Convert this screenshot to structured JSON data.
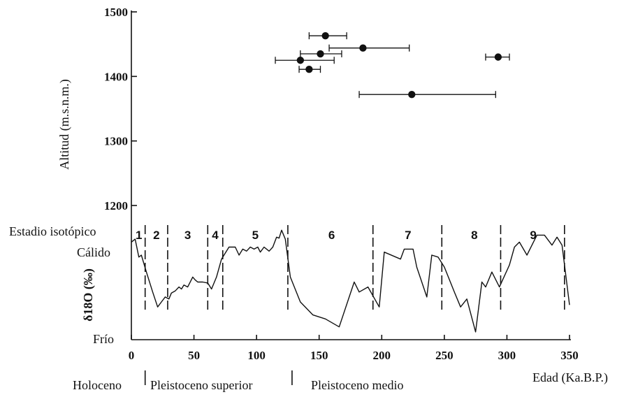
{
  "chart_data": {
    "type": "scatter",
    "ylabel": "Altitud (m.s.n.m.)",
    "xlabel": "Edad (Ka.B.P.)",
    "xlim": [
      0,
      350
    ],
    "ylim": [
      1200,
      1500
    ],
    "x_ticks": [
      0,
      50,
      100,
      150,
      200,
      250,
      300,
      350
    ],
    "y_ticks": [
      1200,
      1300,
      1400,
      1500
    ],
    "points": [
      {
        "x": 155,
        "y": 1463,
        "xmin": 142,
        "xmax": 172
      },
      {
        "x": 185,
        "y": 1444,
        "xmin": 158,
        "xmax": 222
      },
      {
        "x": 151,
        "y": 1435,
        "xmin": 135,
        "xmax": 168
      },
      {
        "x": 135,
        "y": 1425,
        "xmin": 115,
        "xmax": 162
      },
      {
        "x": 142,
        "y": 1411,
        "xmin": 134,
        "xmax": 151
      },
      {
        "x": 293,
        "y": 1430,
        "xmin": 283,
        "xmax": 302
      },
      {
        "x": 224,
        "y": 1372,
        "xmin": 182,
        "xmax": 291
      }
    ],
    "isotope": {
      "ylabel": "δ18O (‰)",
      "warm_label": "Cálido",
      "cold_label": "Frío",
      "stage_title": "Estadio isotópico",
      "stages": [
        {
          "label": "1",
          "center": 6
        },
        {
          "label": "2",
          "center": 20
        },
        {
          "label": "3",
          "center": 45
        },
        {
          "label": "4",
          "center": 67
        },
        {
          "label": "5",
          "center": 99
        },
        {
          "label": "6",
          "center": 160
        },
        {
          "label": "7",
          "center": 221
        },
        {
          "label": "8",
          "center": 274
        },
        {
          "label": "9",
          "center": 321
        }
      ],
      "boundaries": [
        11,
        29,
        61,
        73,
        125,
        193,
        248,
        295,
        346
      ],
      "curve": [
        [
          0,
          0.95
        ],
        [
          3,
          0.98
        ],
        [
          6,
          0.8
        ],
        [
          8,
          0.82
        ],
        [
          12,
          0.65
        ],
        [
          17,
          0.45
        ],
        [
          21,
          0.3
        ],
        [
          24,
          0.35
        ],
        [
          27,
          0.4
        ],
        [
          30,
          0.38
        ],
        [
          32,
          0.44
        ],
        [
          35,
          0.46
        ],
        [
          38,
          0.5
        ],
        [
          40,
          0.48
        ],
        [
          42,
          0.52
        ],
        [
          45,
          0.5
        ],
        [
          49,
          0.6
        ],
        [
          51,
          0.57
        ],
        [
          53,
          0.55
        ],
        [
          57,
          0.55
        ],
        [
          61,
          0.54
        ],
        [
          64,
          0.48
        ],
        [
          68,
          0.6
        ],
        [
          72,
          0.78
        ],
        [
          78,
          0.9
        ],
        [
          83,
          0.9
        ],
        [
          86,
          0.82
        ],
        [
          89,
          0.88
        ],
        [
          92,
          0.86
        ],
        [
          95,
          0.9
        ],
        [
          98,
          0.88
        ],
        [
          101,
          0.9
        ],
        [
          103,
          0.85
        ],
        [
          106,
          0.9
        ],
        [
          110,
          0.86
        ],
        [
          113,
          0.9
        ],
        [
          116,
          1.0
        ],
        [
          118,
          0.99
        ],
        [
          120,
          1.07
        ],
        [
          123,
          0.98
        ],
        [
          127,
          0.6
        ],
        [
          135,
          0.35
        ],
        [
          145,
          0.22
        ],
        [
          155,
          0.18
        ],
        [
          166,
          0.1
        ],
        [
          178,
          0.55
        ],
        [
          182,
          0.45
        ],
        [
          189,
          0.5
        ],
        [
          198,
          0.3
        ],
        [
          202,
          0.85
        ],
        [
          215,
          0.78
        ],
        [
          218,
          0.88
        ],
        [
          225,
          0.88
        ],
        [
          228,
          0.7
        ],
        [
          236,
          0.4
        ],
        [
          240,
          0.82
        ],
        [
          245,
          0.8
        ],
        [
          250,
          0.7
        ],
        [
          258,
          0.45
        ],
        [
          263,
          0.3
        ],
        [
          268,
          0.38
        ],
        [
          275,
          0.05
        ],
        [
          280,
          0.55
        ],
        [
          283,
          0.5
        ],
        [
          288,
          0.65
        ],
        [
          294,
          0.5
        ],
        [
          302,
          0.72
        ],
        [
          306,
          0.9
        ],
        [
          310,
          0.95
        ],
        [
          316,
          0.82
        ],
        [
          324,
          1.02
        ],
        [
          330,
          1.02
        ],
        [
          336,
          0.92
        ],
        [
          340,
          1.0
        ],
        [
          344,
          0.92
        ],
        [
          350,
          0.32
        ]
      ]
    },
    "periods": [
      {
        "label": "Holoceno",
        "from": 0,
        "to": 11
      },
      {
        "label": "Pleistoceno superior",
        "from": 11,
        "to": 125
      },
      {
        "label": "Pleistoceno medio",
        "from": 125,
        "to": 350
      }
    ]
  }
}
